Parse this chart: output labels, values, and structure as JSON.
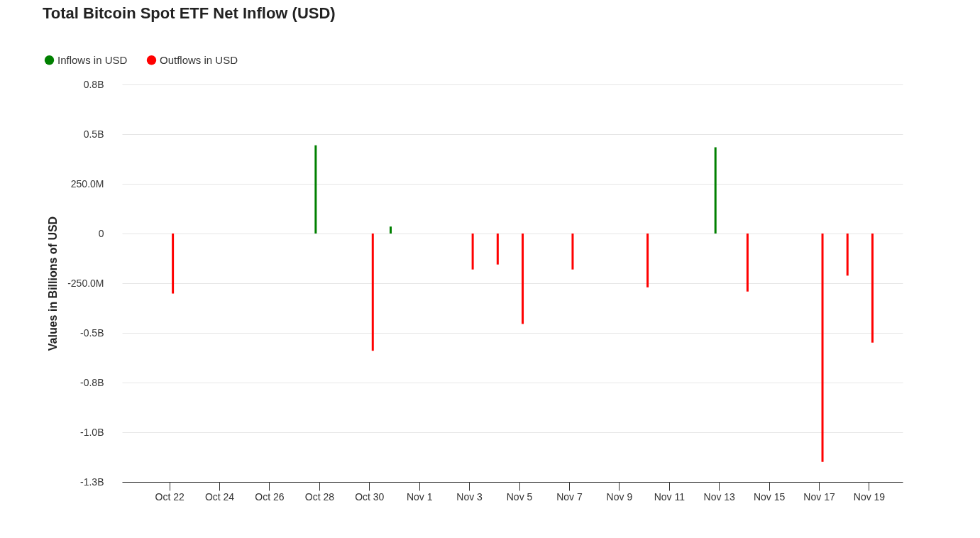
{
  "chart_data": {
    "type": "bar",
    "title": "Total Bitcoin Spot ETF Net Inflow (USD)",
    "ylabel": "Values in Billions of USD",
    "series": [
      {
        "name": "Inflows in USD",
        "color": "#008000",
        "x": [
          "--10-28",
          "--10-31",
          "--11-13"
        ],
        "values": [
          444000000,
          35000000,
          434000000
        ]
      },
      {
        "name": "Outflows in USD",
        "color": "#ff0000",
        "x": [
          "--10-22",
          "--10-30",
          "--11-03",
          "--11-04",
          "--11-05",
          "--11-07",
          "--11-10",
          "--11-14",
          "--11-17",
          "--11-18",
          "--11-19"
        ],
        "values": [
          -302000000,
          -590000000,
          -181000000,
          -156000000,
          -455000000,
          -181000000,
          -271000000,
          -292000000,
          -1149000000,
          -212000000,
          -549000000
        ]
      }
    ],
    "xlim": [
      "--10-20T06:00",
      "--11-20T05:00"
    ],
    "xticks": [
      {
        "value": "--10-22",
        "label": "Oct 22"
      },
      {
        "value": "--10-24",
        "label": "Oct 24"
      },
      {
        "value": "--10-26",
        "label": "Oct 26"
      },
      {
        "value": "--10-28",
        "label": "Oct 28"
      },
      {
        "value": "--10-30",
        "label": "Oct 30"
      },
      {
        "value": "--11-01",
        "label": "Nov 1"
      },
      {
        "value": "--11-03",
        "label": "Nov 3"
      },
      {
        "value": "--11-05",
        "label": "Nov 5"
      },
      {
        "value": "--11-07",
        "label": "Nov 7"
      },
      {
        "value": "--11-09",
        "label": "Nov 9"
      },
      {
        "value": "--11-11",
        "label": "Nov 11"
      },
      {
        "value": "--11-13",
        "label": "Nov 13"
      },
      {
        "value": "--11-15",
        "label": "Nov 15"
      },
      {
        "value": "--11-17",
        "label": "Nov 17"
      },
      {
        "value": "--11-19",
        "label": "Nov 19"
      }
    ],
    "ylim": [
      -1250000000,
      750000000
    ],
    "yticks": [
      {
        "value": 750000000,
        "label": "0.8B"
      },
      {
        "value": 500000000,
        "label": "0.5B"
      },
      {
        "value": 250000000,
        "label": "250.0M"
      },
      0,
      {
        "value": -250000000,
        "label": "-250.0M"
      },
      {
        "value": -500000000,
        "label": "-0.5B"
      },
      {
        "value": -750000000,
        "label": "-0.8B"
      },
      {
        "value": -1000000000,
        "label": "-1.0B"
      },
      {
        "value": -1250000000,
        "label": "-1.3B"
      }
    ],
    "grid": "y",
    "legend": "top left"
  }
}
